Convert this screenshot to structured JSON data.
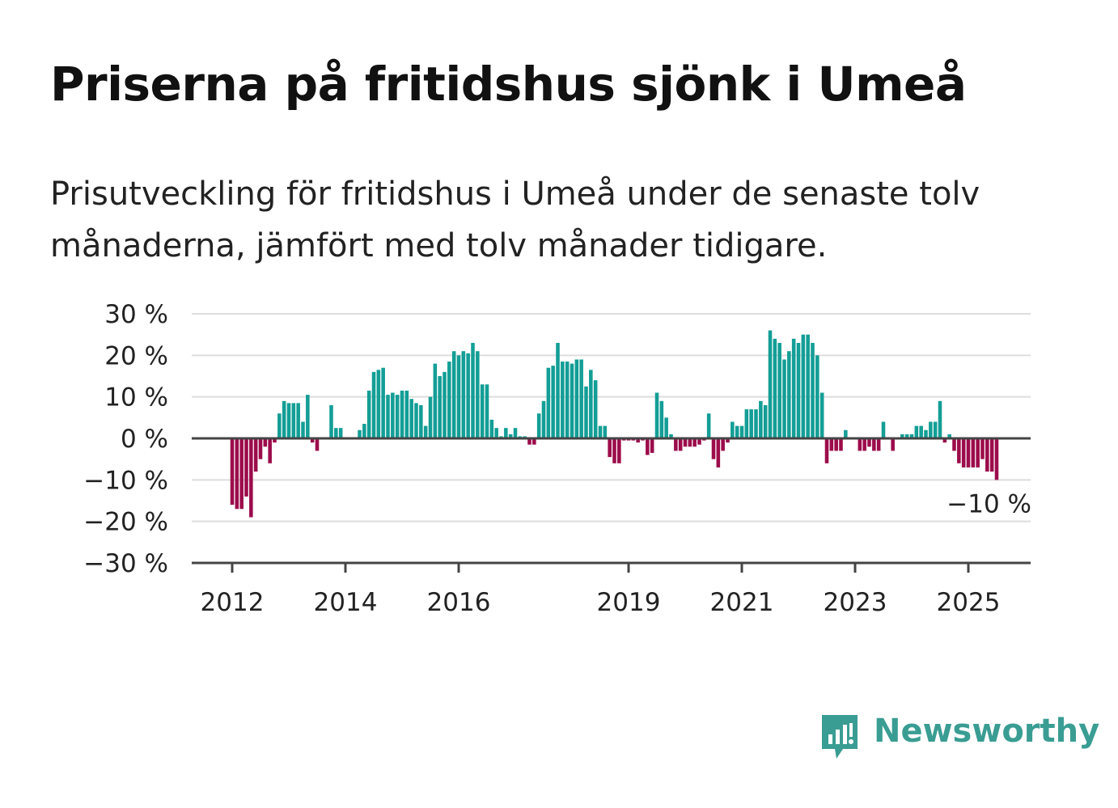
{
  "title": "Priserna på fritidshus sjönk i Umeå",
  "subtitle": "Prisutveckling för fritidshus i Umeå under de senaste tolv månaderna, jämfört med tolv månader tidigare.",
  "brand": {
    "name": "Newsworthy",
    "color": "#3a9d93"
  },
  "colors": {
    "positive": "#139e96",
    "negative": "#9c0c4b",
    "grid": "#dddddd",
    "axis": "#444444"
  },
  "chart_data": {
    "type": "bar",
    "title": "Priserna på fritidshus sjönk i Umeå",
    "ylabel": "",
    "xlabel": "",
    "ylim": [
      -30,
      30
    ],
    "yticks": [
      -30,
      -20,
      -10,
      0,
      10,
      20,
      30
    ],
    "ytick_labels": [
      "−30 %",
      "−20 %",
      "−10 %",
      "0 %",
      "10 %",
      "20 %",
      "30 %"
    ],
    "xticks": [
      2012,
      2014,
      2016,
      2019,
      2021,
      2023,
      2025
    ],
    "xtick_labels": [
      "2012",
      "2014",
      "2016",
      "2019",
      "2021",
      "2023",
      "2025"
    ],
    "x_start": "2012-01",
    "frequency": "monthly",
    "grid": true,
    "annotation": {
      "text": "−10 %",
      "value": -10
    },
    "values": [
      -16,
      -17,
      -17,
      -14,
      -19,
      -8,
      -5,
      -2,
      -6,
      -1,
      6,
      9,
      8.5,
      8.5,
      8.5,
      4,
      10.5,
      -1,
      -3,
      0,
      0,
      8,
      2.5,
      2.5,
      0,
      0,
      0,
      2,
      3.5,
      11.5,
      16,
      16.5,
      17,
      10.5,
      11,
      10.5,
      11.5,
      11.5,
      9.5,
      8.5,
      8,
      3,
      10,
      18,
      15,
      16,
      18.5,
      21,
      20,
      21,
      20.5,
      23,
      21,
      13,
      13,
      4.5,
      2.5,
      0.5,
      2.5,
      1,
      2.5,
      0.5,
      0.5,
      -1.5,
      -1.5,
      6,
      9,
      17,
      17.5,
      23,
      18.5,
      18.5,
      18,
      19,
      19,
      12.5,
      16.5,
      14,
      3,
      3,
      -4.5,
      -6,
      -6,
      -0.5,
      -0.5,
      -0.5,
      -1,
      -0.5,
      -4,
      -3.5,
      11,
      9,
      5,
      1,
      -3,
      -3,
      -2,
      -2,
      -2,
      -1.5,
      -0.5,
      6,
      -5,
      -7,
      -3,
      -1,
      4,
      3,
      3,
      7,
      7,
      7,
      9,
      8,
      26,
      24,
      23,
      19,
      21,
      24,
      23,
      25,
      25,
      23,
      20,
      11,
      -6,
      -3,
      -3,
      -3,
      2,
      0,
      0,
      -3,
      -3,
      -2,
      -3,
      -3,
      4,
      0,
      -3,
      0,
      1,
      1,
      1,
      3,
      3,
      2,
      4,
      4,
      9,
      -1,
      1,
      -3,
      -6,
      -7,
      -7,
      -7,
      -7,
      -5,
      -8,
      -8,
      -10
    ]
  }
}
